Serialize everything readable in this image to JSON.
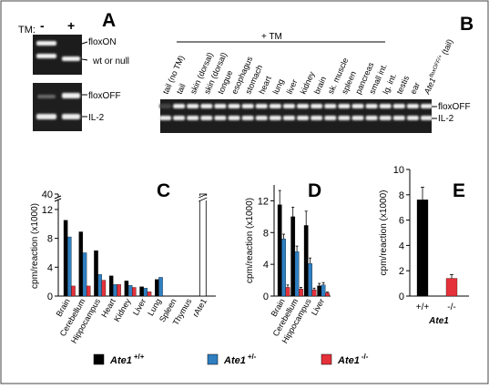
{
  "panels": {
    "A": {
      "letter": "A",
      "tm_label": "TM:",
      "lane_signs": [
        "-",
        "+"
      ],
      "band_labels_top": [
        "floxON",
        "wt or null"
      ],
      "band_labels_bottom": [
        "floxOFF",
        "IL-2"
      ]
    },
    "B": {
      "letter": "B",
      "header": "+ TM",
      "lanes": [
        "tail (no TM)",
        "tail",
        "skin (dorsal)",
        "skin (dorsal)",
        "tongue",
        "esophagus",
        "stomach",
        "heart",
        "lung",
        "liver",
        "kidney",
        "brain",
        "sk. muscle",
        "spleen",
        "pancreas",
        "small int.",
        "lg. int.",
        "testis",
        "ear"
      ],
      "last_lane": {
        "gene": "Ate1",
        "superscript": "floxOFF/+",
        "suffix": "(tail)"
      },
      "band_labels": [
        "floxOFF",
        "IL-2"
      ]
    }
  },
  "legend": [
    {
      "gene": "Ate1",
      "genotype": "+/+",
      "color": "#000000"
    },
    {
      "gene": "Ate1",
      "genotype": "+/-",
      "color": "#2f7fc1"
    },
    {
      "gene": "Ate1",
      "genotype": "-/-",
      "color": "#e5313a"
    }
  ],
  "chart_data": [
    {
      "panel": "C",
      "type": "bar",
      "ylabel": "cpm/reaction (x1000)",
      "y_ticks": [
        0,
        4,
        8,
        12
      ],
      "y_break_tick": 40,
      "ylim": [
        0,
        13
      ],
      "categories": [
        "Brain",
        "Cerebellum",
        "Hippocampus",
        "Heart",
        "Kidney",
        "Liver",
        "Lung",
        "Spleen",
        "Thymus",
        "rAte1"
      ],
      "series": [
        {
          "name": "+/+",
          "values": [
            10.5,
            8.9,
            6.3,
            2.8,
            2.1,
            1.3,
            2.3,
            0,
            0,
            null
          ]
        },
        {
          "name": "+/-",
          "values": [
            8.2,
            6.0,
            3.0,
            1.6,
            1.5,
            1.1,
            2.6,
            0,
            0,
            null
          ]
        },
        {
          "name": "-/-",
          "values": [
            1.4,
            1.4,
            2.2,
            1.6,
            1.2,
            0.6,
            null,
            0,
            0,
            null
          ]
        }
      ],
      "extra_bar": {
        "category": "rAte1",
        "value": 40,
        "style": "outline, broken"
      }
    },
    {
      "panel": "D",
      "type": "bar",
      "ylabel": "cpm/reaction (x1000)",
      "y_ticks": [
        0,
        4,
        8,
        12
      ],
      "ylim": [
        0,
        14
      ],
      "categories": [
        "Brain",
        "Cerebellum",
        "Hippocampus",
        "Liver"
      ],
      "series": [
        {
          "name": "+/+",
          "values": [
            11.5,
            10.0,
            8.9,
            1.3
          ],
          "errors": [
            1.8,
            1.2,
            1.8,
            0.3
          ]
        },
        {
          "name": "+/-",
          "values": [
            7.2,
            5.6,
            4.1,
            1.4
          ],
          "errors": [
            0.6,
            0.7,
            0.7,
            0.3
          ]
        },
        {
          "name": "-/-",
          "values": [
            1.1,
            0.9,
            0.8,
            0.4
          ],
          "errors": [
            0.3,
            0.2,
            0.2,
            0.1
          ]
        }
      ]
    },
    {
      "panel": "E",
      "type": "bar",
      "ylabel": "cpm/reaction (x1000)",
      "y_ticks": [
        0,
        2,
        4,
        6,
        8,
        10
      ],
      "ylim": [
        0,
        10
      ],
      "categories": [
        "+/+",
        "-/-"
      ],
      "xlabel": "Ate1",
      "series": [
        {
          "name": "Ate1",
          "values": [
            7.6,
            1.4
          ],
          "errors": [
            1.0,
            0.3
          ],
          "colors": [
            "#000000",
            "#e5313a"
          ]
        }
      ]
    }
  ]
}
